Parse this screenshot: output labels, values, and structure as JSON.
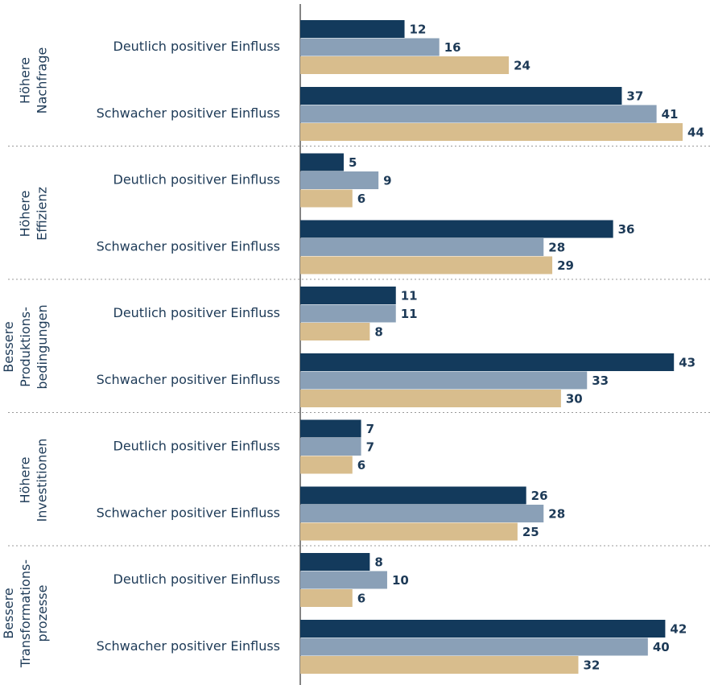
{
  "chart_data": {
    "type": "bar",
    "orientation": "horizontal",
    "groups": [
      {
        "label": [
          "Höhere",
          "Nachfrage"
        ]
      },
      {
        "label": [
          "Höhere",
          "Effizienz"
        ]
      },
      {
        "label": [
          "Bessere",
          "Produktions-",
          "bedingungen"
        ]
      },
      {
        "label": [
          "Höhere",
          "Investitionen"
        ]
      },
      {
        "label": [
          "Bessere",
          "Transformations-",
          "prozesse"
        ]
      }
    ],
    "categories": [
      "Deutlich positiver Einfluss",
      "Schwacher positiver Einfluss",
      "Deutlich positiver Einfluss",
      "Schwacher positiver Einfluss",
      "Deutlich positiver Einfluss",
      "Schwacher positiver Einfluss",
      "Deutlich positiver Einfluss",
      "Schwacher positiver Einfluss",
      "Deutlich positiver Einfluss",
      "Schwacher positiver Einfluss"
    ],
    "series": [
      {
        "color": "#133a5c",
        "values": [
          12,
          37,
          5,
          36,
          11,
          43,
          7,
          26,
          8,
          42
        ]
      },
      {
        "color": "#8aa0b7",
        "values": [
          16,
          41,
          9,
          28,
          11,
          33,
          7,
          28,
          10,
          40
        ]
      },
      {
        "color": "#d8bd8d",
        "values": [
          24,
          44,
          6,
          29,
          8,
          30,
          6,
          25,
          6,
          32
        ]
      }
    ]
  }
}
